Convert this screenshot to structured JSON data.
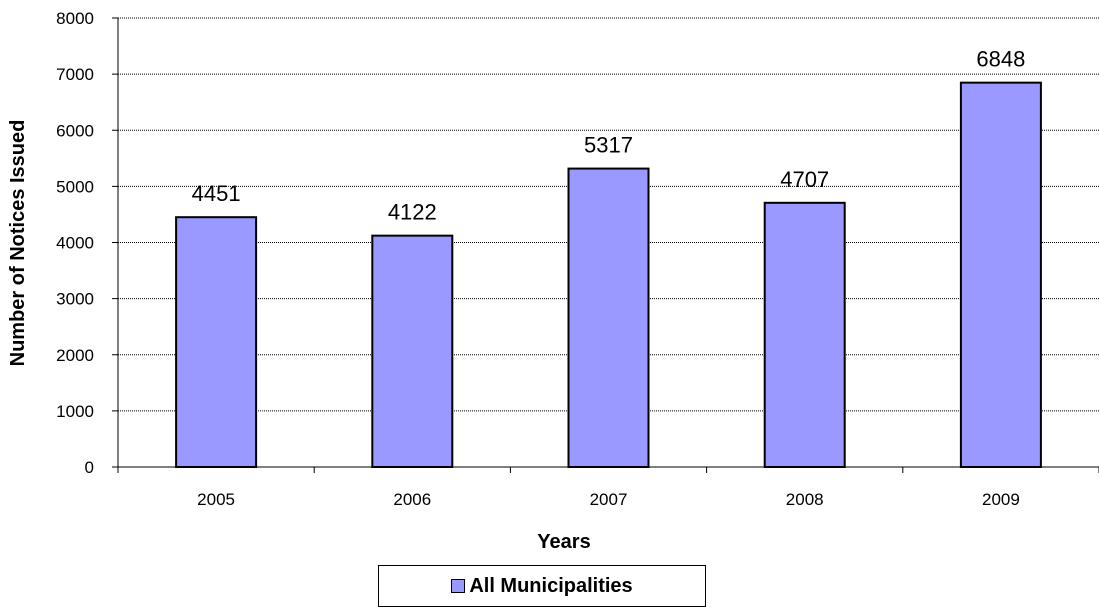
{
  "chart_data": {
    "type": "bar",
    "categories": [
      "2005",
      "2006",
      "2007",
      "2008",
      "2009"
    ],
    "series": [
      {
        "name": "All Municipalities",
        "values": [
          4451,
          4122,
          5317,
          4707,
          6848
        ]
      }
    ],
    "data_labels": [
      "4451",
      "4122",
      "5317",
      "4707",
      "6848"
    ],
    "xlabel": "Years",
    "ylabel": "Number of Notices Issued",
    "ylim": [
      0,
      8000
    ],
    "yticks": [
      "0",
      "1000",
      "2000",
      "3000",
      "4000",
      "5000",
      "6000",
      "7000",
      "8000"
    ],
    "grid": true,
    "legend_position": "bottom",
    "bar_color": "#9999ff"
  }
}
